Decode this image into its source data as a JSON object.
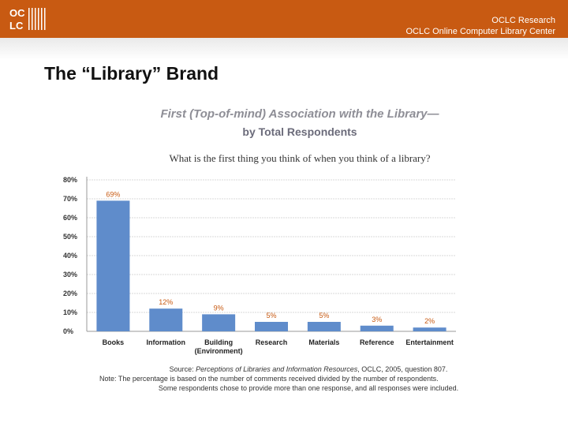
{
  "header": {
    "org_line1": "OCLC Research",
    "org_line2": "OCLC Online Computer Library Center"
  },
  "slide": {
    "title": "The “Library” Brand"
  },
  "colors": {
    "header_bg": "#c85a12",
    "bar": "#5f8ccb",
    "bar_label": "#c85a12"
  },
  "chart_data": {
    "type": "bar",
    "title": "First (Top-of-mind) Association with the Library—",
    "subtitle": "by Total Respondents",
    "question": "What is the first thing you think of when you think of a library?",
    "categories": [
      "Books",
      "Information",
      "Building (Environment)",
      "Research",
      "Materials",
      "Reference",
      "Entertainment"
    ],
    "values": [
      69,
      12,
      9,
      5,
      5,
      3,
      2
    ],
    "value_labels": [
      "69%",
      "12%",
      "9%",
      "5%",
      "5%",
      "3%",
      "2%"
    ],
    "ylim": [
      0,
      80
    ],
    "y_ticks": [
      "0%",
      "10%",
      "20%",
      "30%",
      "40%",
      "50%",
      "60%",
      "70%",
      "80%"
    ],
    "grid": true,
    "source_prefix": "Source: ",
    "source_title": "Perceptions of Libraries and Information Resources",
    "source_suffix": ", OCLC, 2005, question 807.",
    "note_line1": "Note: The percentage is based on the number of comments received divided by the number of respondents.",
    "note_line2": "Some respondents chose to provide more than one response, and all responses were included."
  }
}
